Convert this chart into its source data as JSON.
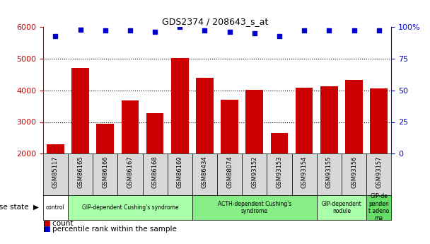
{
  "title": "GDS2374 / 208643_s_at",
  "samples": [
    "GSM85117",
    "GSM86165",
    "GSM86166",
    "GSM86167",
    "GSM86168",
    "GSM86169",
    "GSM86434",
    "GSM88074",
    "GSM93152",
    "GSM93153",
    "GSM93154",
    "GSM93155",
    "GSM93156",
    "GSM93157"
  ],
  "bar_values": [
    2300,
    4700,
    2950,
    3680,
    3280,
    5020,
    4390,
    3700,
    4010,
    2660,
    4080,
    4130,
    4320,
    4060
  ],
  "percentile_values": [
    93,
    98,
    97,
    97,
    96,
    100,
    97,
    96,
    95,
    93,
    97,
    97,
    97,
    97
  ],
  "bar_color": "#cc0000",
  "percentile_color": "#0000cc",
  "ylim_left": [
    2000,
    6000
  ],
  "ylim_right": [
    0,
    100
  ],
  "yticks_left": [
    2000,
    3000,
    4000,
    5000,
    6000
  ],
  "yticks_right": [
    0,
    25,
    50,
    75,
    100
  ],
  "right_tick_labels": [
    "0",
    "25",
    "50",
    "75",
    "100%"
  ],
  "grid_values": [
    3000,
    4000,
    5000
  ],
  "disease_groups": [
    {
      "label": "control",
      "start": 0,
      "end": 1,
      "color": "#ffffff"
    },
    {
      "label": "GIP-dependent Cushing's syndrome",
      "start": 1,
      "end": 6,
      "color": "#aaffaa"
    },
    {
      "label": "ACTH-dependent Cushing's\nsyndrome",
      "start": 6,
      "end": 11,
      "color": "#88ee88"
    },
    {
      "label": "GIP-dependent\nnodule",
      "start": 11,
      "end": 13,
      "color": "#aaffaa"
    },
    {
      "label": "GIP-de\npenden\nt adeno\nma",
      "start": 13,
      "end": 14,
      "color": "#66dd66"
    }
  ],
  "legend_count_label": "count",
  "legend_percentile_label": "percentile rank within the sample"
}
